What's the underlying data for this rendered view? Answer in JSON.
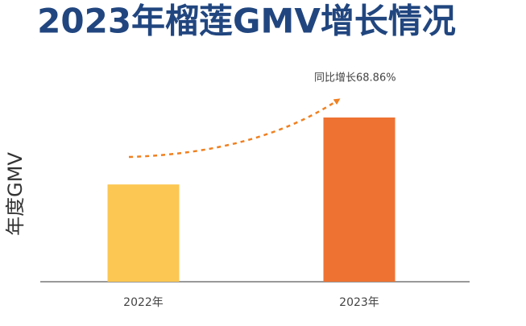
{
  "chart_data": {
    "type": "bar",
    "title": "2023年榴莲GMV增长情况",
    "y_label": "年度GMV",
    "annotation": "同比增长68.86%",
    "categories": [
      "2022年",
      "2023年"
    ],
    "values": [
      100,
      168.86
    ],
    "colors": [
      "#fcc752",
      "#ee7232"
    ],
    "ylim": [
      0,
      240
    ]
  }
}
